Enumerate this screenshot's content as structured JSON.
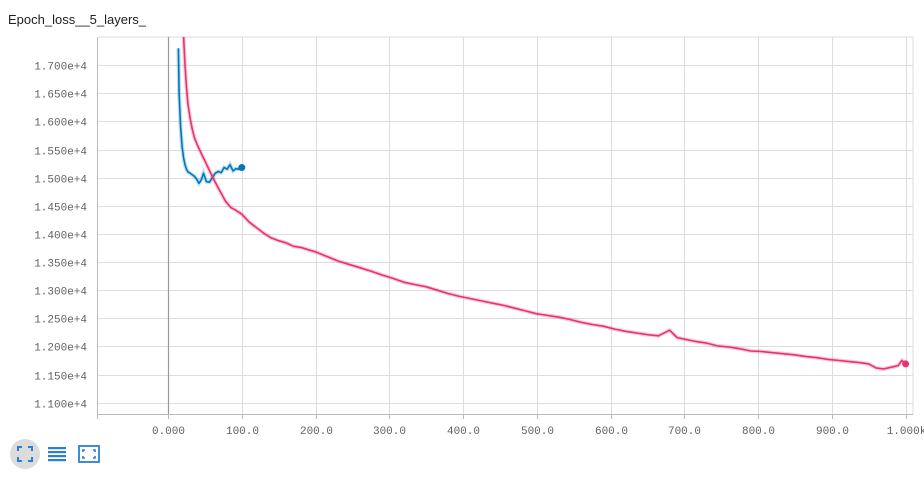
{
  "header": {
    "title": "Epoch_loss__5_layers_"
  },
  "chart_data": {
    "type": "line",
    "title": "Epoch_loss__5_layers_",
    "xlabel": "",
    "ylabel": "",
    "xlim": [
      -95,
      1010
    ],
    "ylim": [
      10800,
      17500
    ],
    "x_ticks": [
      0,
      100,
      200,
      300,
      400,
      500,
      600,
      700,
      800,
      900,
      1000
    ],
    "x_tick_labels": [
      "0.000",
      "100.0",
      "200.0",
      "300.0",
      "400.0",
      "500.0",
      "600.0",
      "700.0",
      "800.0",
      "900.0",
      "1.000k"
    ],
    "y_ticks": [
      11000,
      11500,
      12000,
      12500,
      13000,
      13500,
      14000,
      14500,
      15000,
      15500,
      16000,
      16500,
      17000
    ],
    "y_tick_labels": [
      "1.100e+4",
      "1.150e+4",
      "1.200e+4",
      "1.250e+4",
      "1.300e+4",
      "1.350e+4",
      "1.400e+4",
      "1.450e+4",
      "1.500e+4",
      "1.550e+4",
      "1.600e+4",
      "1.650e+4",
      "1.700e+4"
    ],
    "grid": true,
    "series": [
      {
        "color": "#0077bb",
        "x": [
          14,
          15,
          17,
          19,
          21,
          23,
          25,
          27,
          30,
          33,
          36,
          39,
          42,
          45,
          48,
          52,
          56,
          60,
          64,
          68,
          72,
          76,
          80,
          84,
          88,
          92,
          96,
          100
        ],
        "y": [
          17300,
          16500,
          15900,
          15550,
          15350,
          15230,
          15150,
          15100,
          15080,
          15050,
          15020,
          14970,
          14900,
          14960,
          15080,
          14930,
          14920,
          15000,
          15080,
          15110,
          15090,
          15180,
          15150,
          15230,
          15120,
          15160,
          15150,
          15180
        ]
      },
      {
        "color": "#e8336d",
        "x": [
          21,
          23,
          25,
          27,
          30,
          33,
          36,
          40,
          45,
          50,
          55,
          60,
          66,
          72,
          78,
          85,
          92,
          100,
          110,
          120,
          130,
          140,
          150,
          160,
          170,
          180,
          190,
          200,
          215,
          230,
          245,
          260,
          275,
          290,
          305,
          320,
          335,
          350,
          365,
          380,
          395,
          410,
          425,
          440,
          455,
          470,
          485,
          500,
          515,
          530,
          545,
          560,
          575,
          590,
          605,
          620,
          635,
          650,
          665,
          680,
          690,
          700,
          715,
          730,
          745,
          760,
          775,
          790,
          805,
          820,
          835,
          850,
          865,
          880,
          895,
          910,
          925,
          940,
          950,
          960,
          970,
          980,
          990,
          995,
          1000
        ],
        "y": [
          17500,
          17000,
          16600,
          16300,
          16050,
          15850,
          15700,
          15570,
          15430,
          15300,
          15160,
          15020,
          14870,
          14720,
          14580,
          14470,
          14420,
          14350,
          14210,
          14110,
          14010,
          13930,
          13880,
          13840,
          13780,
          13760,
          13720,
          13680,
          13600,
          13520,
          13460,
          13400,
          13340,
          13270,
          13210,
          13140,
          13100,
          13060,
          13000,
          12940,
          12890,
          12850,
          12810,
          12770,
          12730,
          12680,
          12630,
          12580,
          12550,
          12520,
          12480,
          12430,
          12390,
          12360,
          12310,
          12270,
          12240,
          12210,
          12190,
          12290,
          12160,
          12130,
          12090,
          12060,
          12010,
          11990,
          11960,
          11920,
          11910,
          11890,
          11870,
          11850,
          11820,
          11800,
          11770,
          11750,
          11730,
          11710,
          11690,
          11620,
          11600,
          11630,
          11660,
          11750,
          11690
        ]
      }
    ]
  },
  "toolbar": {
    "buttons": [
      {
        "icon": "fit-to-data-icon"
      },
      {
        "icon": "list-icon"
      },
      {
        "icon": "expand-icon"
      }
    ]
  }
}
